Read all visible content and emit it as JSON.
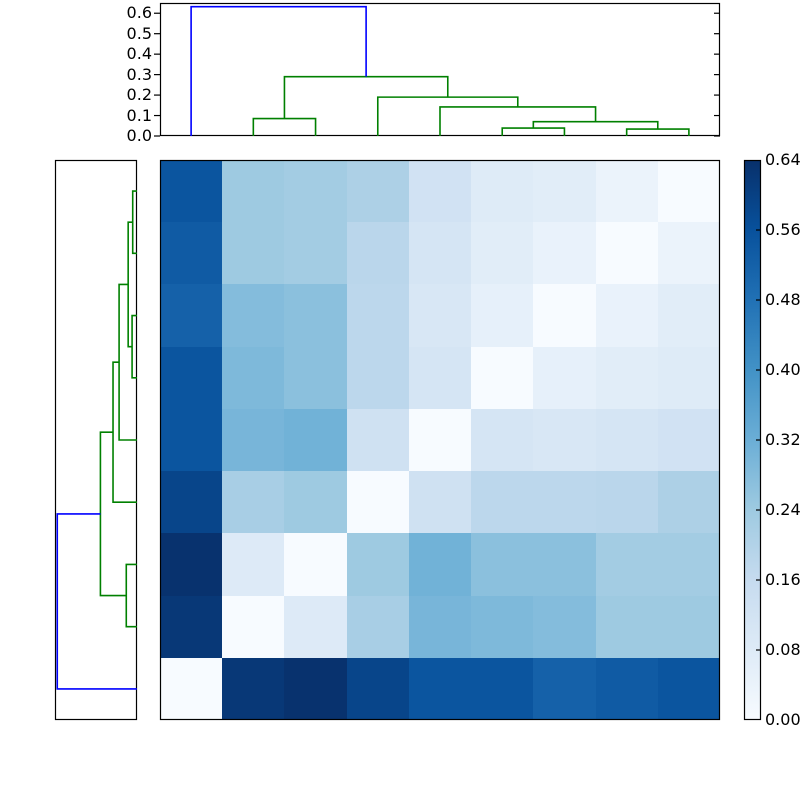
{
  "figure": {
    "background": "#ffffff",
    "line_colors": {
      "green": "#008000",
      "blue": "#0000ff",
      "axis": "#000000"
    }
  },
  "chart_data": {
    "type": "heatmap",
    "title": "",
    "description": "Hierarchical clustering: top and left dendrograms with reordered distance matrix heatmap and colorbar",
    "colormap": "Blues",
    "vmin": 0.0,
    "vmax": 0.64,
    "rows": 9,
    "cols": 9,
    "matrix": [
      [
        0.55,
        0.24,
        0.23,
        0.21,
        0.125,
        0.08,
        0.07,
        0.04,
        0.0
      ],
      [
        0.535,
        0.24,
        0.23,
        0.185,
        0.11,
        0.07,
        0.045,
        0.0,
        0.04
      ],
      [
        0.52,
        0.28,
        0.27,
        0.18,
        0.1,
        0.055,
        0.0,
        0.045,
        0.07
      ],
      [
        0.55,
        0.29,
        0.27,
        0.18,
        0.11,
        0.0,
        0.055,
        0.07,
        0.08
      ],
      [
        0.55,
        0.3,
        0.31,
        0.13,
        0.0,
        0.11,
        0.1,
        0.11,
        0.125
      ],
      [
        0.59,
        0.22,
        0.24,
        0.0,
        0.13,
        0.18,
        0.18,
        0.185,
        0.21
      ],
      [
        0.635,
        0.085,
        0.0,
        0.24,
        0.31,
        0.27,
        0.27,
        0.23,
        0.23
      ],
      [
        0.62,
        0.0,
        0.085,
        0.22,
        0.3,
        0.29,
        0.28,
        0.24,
        0.24
      ],
      [
        0.0,
        0.62,
        0.635,
        0.59,
        0.55,
        0.55,
        0.52,
        0.535,
        0.55
      ]
    ],
    "colormap_stops": [
      {
        "f": 0.0,
        "color": "#f7fbff"
      },
      {
        "f": 0.125,
        "color": "#deebf7"
      },
      {
        "f": 0.25,
        "color": "#c6dbef"
      },
      {
        "f": 0.375,
        "color": "#9ecae1"
      },
      {
        "f": 0.5,
        "color": "#6baed6"
      },
      {
        "f": 0.625,
        "color": "#4292c6"
      },
      {
        "f": 0.75,
        "color": "#2171b5"
      },
      {
        "f": 0.875,
        "color": "#08519c"
      },
      {
        "f": 1.0,
        "color": "#08306b"
      }
    ],
    "colorbar": {
      "tick_labels": [
        "0.64",
        "0.56",
        "0.48",
        "0.40",
        "0.32",
        "0.24",
        "0.16",
        "0.08",
        "0.00"
      ]
    },
    "top_dendrogram": {
      "axis_max": 0.65,
      "tick_values": [
        0.0,
        0.1,
        0.2,
        0.3,
        0.4,
        0.5,
        0.6
      ],
      "tick_labels": [
        "0.0",
        "0.1",
        "0.2",
        "0.3",
        "0.4",
        "0.5",
        "0.6"
      ],
      "links": [
        {
          "a": 1.5,
          "b": 2.5,
          "ha": 0,
          "hb": 0,
          "h": 0.085,
          "color": "green"
        },
        {
          "a": 5.5,
          "b": 6.5,
          "ha": 0,
          "hb": 0,
          "h": 0.039,
          "color": "green"
        },
        {
          "a": 7.5,
          "b": 8.5,
          "ha": 0,
          "hb": 0,
          "h": 0.034,
          "color": "green"
        },
        {
          "a": 6.0,
          "b": 8.0,
          "ha": 0.039,
          "hb": 0.034,
          "h": 0.07,
          "color": "green"
        },
        {
          "a": 4.5,
          "b": 7.0,
          "ha": 0,
          "hb": 0.07,
          "h": 0.142,
          "color": "green"
        },
        {
          "a": 3.5,
          "b": 5.75,
          "ha": 0,
          "hb": 0.142,
          "h": 0.19,
          "color": "green"
        },
        {
          "a": 2.0,
          "b": 4.625,
          "ha": 0.085,
          "hb": 0.19,
          "h": 0.29,
          "color": "green"
        },
        {
          "a": 0.5,
          "b": 3.3125,
          "ha": 0,
          "hb": 0.29,
          "h": 0.632,
          "color": "blue"
        }
      ]
    },
    "left_dendrogram": {
      "axis_max": 0.65,
      "links": [
        {
          "a": 0.5,
          "b": 1.5,
          "ha": 0,
          "hb": 0,
          "h": 0.034,
          "color": "green"
        },
        {
          "a": 2.5,
          "b": 3.5,
          "ha": 0,
          "hb": 0,
          "h": 0.039,
          "color": "green"
        },
        {
          "a": 1.0,
          "b": 3.0,
          "ha": 0.034,
          "hb": 0.039,
          "h": 0.07,
          "color": "green"
        },
        {
          "a": 2.0,
          "b": 4.5,
          "ha": 0.07,
          "hb": 0,
          "h": 0.142,
          "color": "green"
        },
        {
          "a": 3.25,
          "b": 5.5,
          "ha": 0.142,
          "hb": 0,
          "h": 0.19,
          "color": "green"
        },
        {
          "a": 6.5,
          "b": 7.5,
          "ha": 0,
          "hb": 0,
          "h": 0.085,
          "color": "green"
        },
        {
          "a": 4.375,
          "b": 7.0,
          "ha": 0.19,
          "hb": 0.085,
          "h": 0.29,
          "color": "green"
        },
        {
          "a": 5.6875,
          "b": 8.5,
          "ha": 0.29,
          "hb": 0,
          "h": 0.632,
          "color": "blue"
        }
      ]
    }
  }
}
